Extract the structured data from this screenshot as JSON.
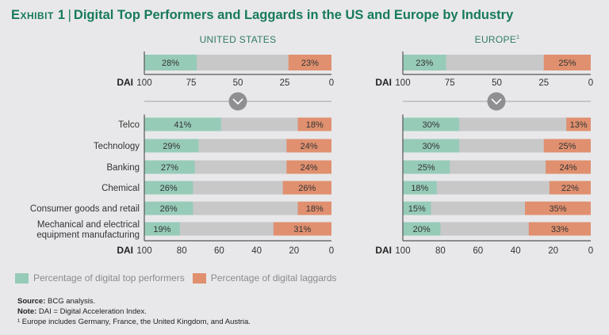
{
  "title": {
    "exhibit": "Exhibit 1",
    "separator": "|",
    "text": "Digital Top Performers and Laggards in the US and Europe by Industry"
  },
  "colors": {
    "top_performers": "#96cbb8",
    "laggards": "#e0906f",
    "middle": "#c8c8c9",
    "title": "#177a5a",
    "chevron_circle": "#8f8f91"
  },
  "legend": {
    "top_performers": "Percentage of digital top performers",
    "laggards": "Percentage of digital laggards"
  },
  "notes": {
    "source_label": "Source:",
    "source_text": " BCG analysis.",
    "note_label": "Note:",
    "note_text": " DAI = Digital Acceleration Index.",
    "footnote": "¹ Europe includes Germany, France, the United Kingdom, and Austria."
  },
  "chart_data": [
    {
      "type": "bar",
      "title": "UNITED STATES",
      "subtitle": "overall",
      "xlabel": "DAI",
      "xlim": [
        100,
        0
      ],
      "xticks": [
        100,
        75,
        50,
        25,
        0
      ],
      "categories": [
        ""
      ],
      "series": [
        {
          "name": "Percentage of digital top performers",
          "values": [
            28
          ]
        },
        {
          "name": "Percentage of digital laggards",
          "values": [
            23
          ]
        }
      ]
    },
    {
      "type": "bar",
      "title": "EUROPE",
      "title_footnote": "1",
      "subtitle": "overall",
      "xlabel": "DAI",
      "xlim": [
        100,
        0
      ],
      "xticks": [
        100,
        75,
        50,
        25,
        0
      ],
      "categories": [
        ""
      ],
      "series": [
        {
          "name": "Percentage of digital top performers",
          "values": [
            23
          ]
        },
        {
          "name": "Percentage of digital laggards",
          "values": [
            25
          ]
        }
      ]
    },
    {
      "type": "bar",
      "title": "UNITED STATES",
      "subtitle": "by industry",
      "xlabel": "DAI",
      "xlim": [
        100,
        0
      ],
      "xticks": [
        100,
        80,
        60,
        40,
        20,
        0
      ],
      "categories": [
        "Telco",
        "Technology",
        "Banking",
        "Chemical",
        "Consumer goods and retail",
        "Mechanical and electrical|equipment manufacturing"
      ],
      "series": [
        {
          "name": "Percentage of digital top performers",
          "values": [
            41,
            29,
            27,
            26,
            26,
            19
          ]
        },
        {
          "name": "Percentage of digital laggards",
          "values": [
            18,
            24,
            24,
            26,
            18,
            31
          ]
        }
      ]
    },
    {
      "type": "bar",
      "title": "EUROPE",
      "subtitle": "by industry",
      "xlabel": "DAI",
      "xlim": [
        100,
        0
      ],
      "xticks": [
        100,
        80,
        60,
        40,
        20,
        0
      ],
      "categories": [
        "Telco",
        "Technology",
        "Banking",
        "Chemical",
        "Consumer goods and retail",
        "Mechanical and electrical|equipment manufacturing"
      ],
      "series": [
        {
          "name": "Percentage of digital top performers",
          "values": [
            30,
            30,
            25,
            18,
            15,
            20
          ]
        },
        {
          "name": "Percentage of digital laggards",
          "values": [
            13,
            25,
            24,
            22,
            35,
            33
          ]
        }
      ]
    }
  ]
}
